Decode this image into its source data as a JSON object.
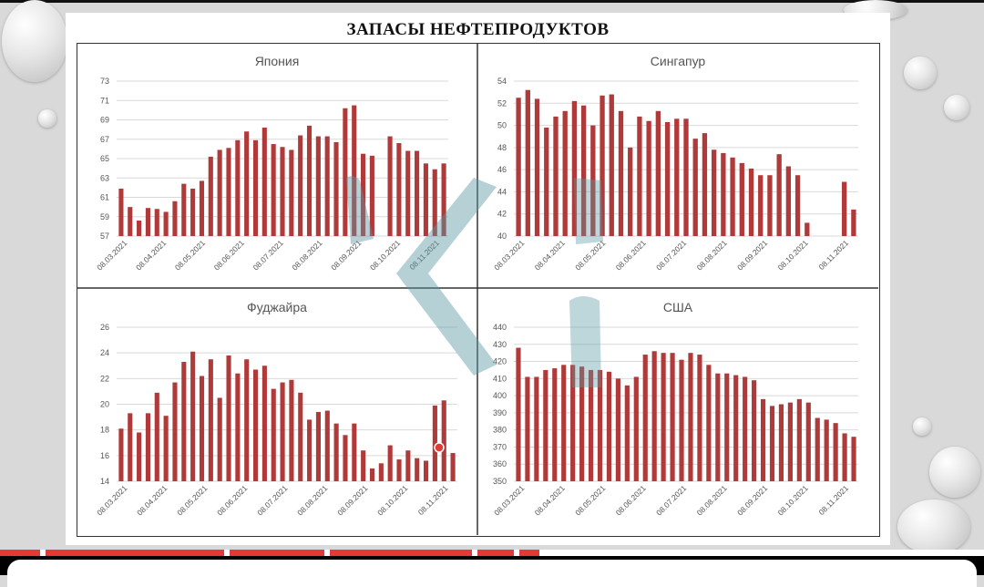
{
  "slide": {
    "title": "ЗАПАСЫ НЕФТЕПРОДУКТОВ"
  },
  "colors": {
    "bar": "#b03a3a",
    "grid": "#d9d9d9",
    "watermark": "#5a9aa5"
  },
  "chart_data": [
    {
      "type": "bar",
      "title": "Япония",
      "ylim": [
        57,
        73
      ],
      "yticks": [
        57,
        59,
        61,
        63,
        65,
        67,
        69,
        71,
        73
      ],
      "x_tick_labels": [
        "08.03.2021",
        "08.04.2021",
        "08.05.2021",
        "08.06.2021",
        "08.07.2021",
        "08.08.2021",
        "08.09.2021",
        "08.10.2021",
        "08.11.2021"
      ],
      "values": [
        61.9,
        60.0,
        58.6,
        59.9,
        59.8,
        59.5,
        60.6,
        62.4,
        61.9,
        62.7,
        65.2,
        65.9,
        66.1,
        66.9,
        67.8,
        66.9,
        68.2,
        66.5,
        66.2,
        65.9,
        67.4,
        68.4,
        67.3,
        67.3,
        66.7,
        70.2,
        70.5,
        65.5,
        65.3,
        57.0,
        67.3,
        66.6,
        65.8,
        65.8,
        64.5,
        63.9,
        64.5
      ],
      "grid": true,
      "legend": "none"
    },
    {
      "type": "bar",
      "title": "Сингапур",
      "ylim": [
        40,
        54
      ],
      "yticks": [
        40,
        42,
        44,
        46,
        48,
        50,
        52,
        54
      ],
      "x_tick_labels": [
        "08.03.2021",
        "08.04.2021",
        "08.05.2021",
        "08.06.2021",
        "08.07.2021",
        "08.08.2021",
        "08.09.2021",
        "08.10.2021",
        "08.11.2021"
      ],
      "values": [
        52.5,
        53.2,
        52.4,
        49.8,
        50.8,
        51.3,
        52.2,
        51.8,
        50.0,
        52.7,
        52.8,
        51.3,
        48.0,
        50.8,
        50.4,
        51.3,
        50.3,
        50.6,
        50.6,
        48.8,
        49.3,
        47.8,
        47.5,
        47.1,
        46.6,
        46.1,
        45.5,
        45.5,
        47.4,
        46.3,
        45.5,
        41.2,
        40,
        40,
        40,
        44.9,
        42.4
      ],
      "grid": true,
      "legend": "none"
    },
    {
      "type": "bar",
      "title": "Фуджайра",
      "ylim": [
        14,
        26
      ],
      "yticks": [
        14,
        16,
        18,
        20,
        22,
        24,
        26
      ],
      "x_tick_labels": [
        "08.03.2021",
        "08.04.2021",
        "08.05.2021",
        "08.06.2021",
        "08.07.2021",
        "08.08.2021",
        "08.09.2021",
        "08.10.2021",
        "08.11.2021"
      ],
      "values": [
        18.1,
        19.3,
        17.8,
        19.3,
        20.9,
        19.1,
        21.7,
        23.3,
        24.1,
        22.2,
        23.5,
        20.5,
        23.8,
        22.4,
        23.5,
        22.7,
        23.0,
        21.2,
        21.7,
        21.9,
        20.9,
        18.8,
        19.4,
        19.5,
        18.5,
        17.6,
        18.5,
        16.4,
        15.0,
        15.4,
        16.8,
        15.7,
        16.4,
        15.8,
        15.6,
        19.9,
        20.3,
        16.2
      ],
      "grid": true,
      "legend": "none"
    },
    {
      "type": "bar",
      "title": "США",
      "ylim": [
        350,
        440
      ],
      "yticks": [
        350,
        360,
        370,
        380,
        390,
        400,
        410,
        420,
        430,
        440
      ],
      "x_tick_labels": [
        "08.03.2021",
        "08.04.2021",
        "08.05.2021",
        "08.06.2021",
        "08.07.2021",
        "08.08.2021",
        "08.09.2021",
        "08.10.2021",
        "08.11.2021"
      ],
      "values": [
        428,
        411,
        411,
        415,
        416,
        418,
        418,
        417,
        415,
        415,
        414,
        410,
        406,
        411,
        424,
        426,
        425,
        425,
        421,
        425,
        424,
        418,
        413,
        413,
        412,
        411,
        409,
        398,
        394,
        395,
        396,
        398,
        396,
        387,
        386,
        384,
        378,
        376
      ],
      "grid": true,
      "legend": "none"
    }
  ]
}
